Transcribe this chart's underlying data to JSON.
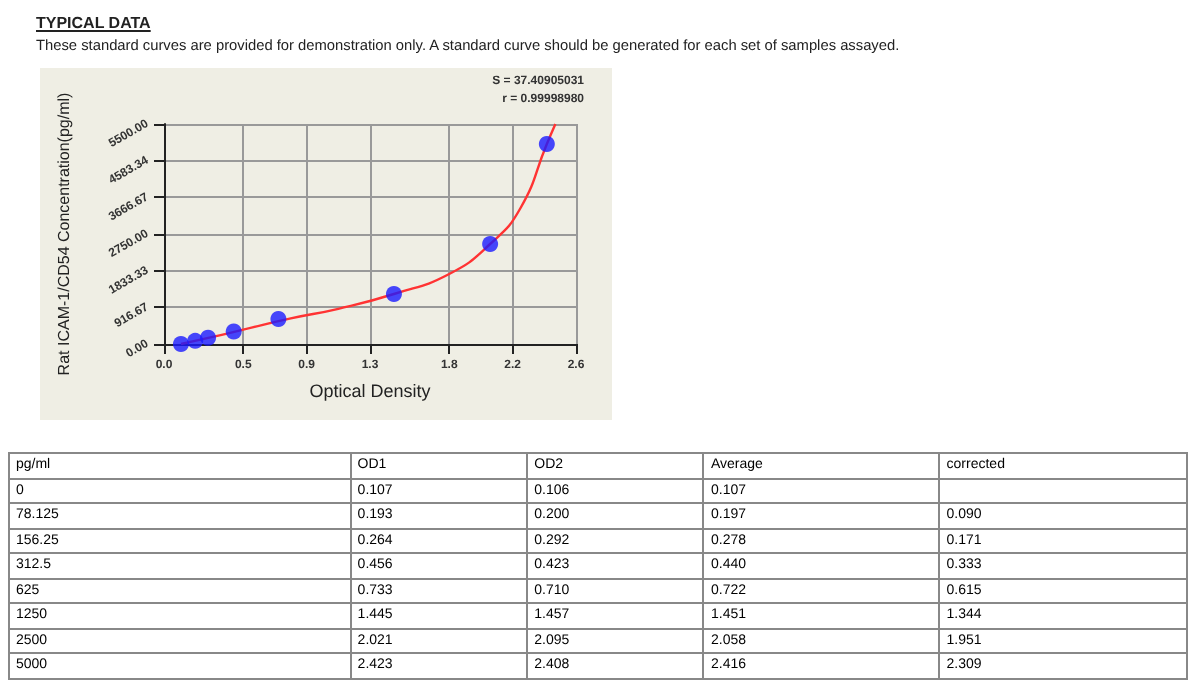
{
  "chart_data": [
    {
      "type": "scatter",
      "title": "TYPICAL DATA",
      "subtitle": "These standard curves are provided for demonstration only. A standard curve should be generated for each set of samples assayed.",
      "xlabel": "Optical Density",
      "ylabel": "Rat ICAM-1/CD54 Concentration(pg/ml)",
      "annotations": [
        "S = 37.40905031",
        "r = 0.99998980"
      ],
      "xlim": [
        0,
        2.6
      ],
      "ylim": [
        0,
        5500
      ],
      "xticks": [
        {
          "value": 0,
          "label": "0.0"
        },
        0.5,
        0.9,
        1.3,
        1.8,
        2.2,
        2.6
      ],
      "yticks": [
        {
          "value": 0,
          "label": "0.00"
        },
        {
          "value": 916.67,
          "label": "916.67"
        },
        {
          "value": 1833.33,
          "label": "1833.33"
        },
        {
          "value": 2750,
          "label": "2750.00"
        },
        {
          "value": 3666.67,
          "label": "3666.67"
        },
        {
          "value": 4583.34,
          "label": "4583.34"
        },
        {
          "value": 5500,
          "label": "5500.00"
        }
      ],
      "grid": true,
      "marker": "circle",
      "series": [
        {
          "type": "scatter",
          "color": "#1a1aff",
          "x": [
            0.107,
            0.197,
            0.278,
            0.44,
            0.722,
            1.451,
            2.058,
            2.416
          ],
          "values": [
            0,
            78.125,
            156.25,
            312.5,
            625,
            1250,
            2500,
            5000
          ]
        },
        {
          "type": "line",
          "color": "#ff3333",
          "marker": "none",
          "x": [
            0.107,
            0.3,
            0.5,
            0.8,
            1.1,
            1.451,
            1.8,
            2.058,
            2.25,
            2.416,
            2.47
          ],
          "values": [
            0,
            170,
            360,
            640,
            880,
            1250,
            1750,
            2500,
            3400,
            5000,
            5500
          ]
        }
      ]
    },
    {
      "type": "other",
      "ylabel": "pg/ml",
      "categories": [
        "OD1",
        "OD2",
        "Average",
        "corrected"
      ],
      "y_categories": [
        "0",
        "78.125",
        "156.25",
        "312.5",
        "625",
        "1250",
        "2500",
        "5000"
      ],
      "cell_labels": [
        [
          "0.107",
          "0.106",
          "0.107",
          null
        ],
        [
          "0.193",
          "0.200",
          "0.197",
          "0.090"
        ],
        [
          "0.264",
          "0.292",
          "0.278",
          "0.171"
        ],
        [
          "0.456",
          "0.423",
          "0.440",
          "0.333"
        ],
        [
          "0.733",
          "0.710",
          "0.722",
          "0.615"
        ],
        [
          "1.445",
          "1.457",
          "1.451",
          "1.344"
        ],
        [
          "2.021",
          "2.095",
          "2.058",
          "1.951"
        ],
        [
          "2.423",
          "2.408",
          "2.416",
          "2.309"
        ]
      ]
    }
  ]
}
